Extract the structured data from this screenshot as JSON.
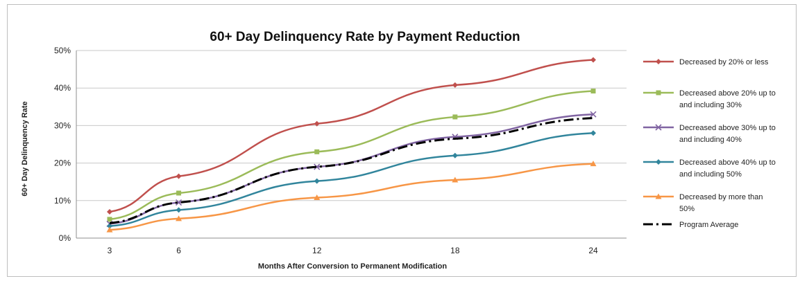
{
  "chart_data": {
    "type": "line",
    "title": "60+ Day Delinquency Rate by Payment Reduction",
    "xlabel": "Months After Conversion to Permanent Modification",
    "ylabel": "60+ Day Delinquency Rate",
    "x": [
      3,
      6,
      12,
      18,
      24
    ],
    "xlim": [
      3,
      24
    ],
    "ylim": [
      0,
      50
    ],
    "y_ticks": [
      "0%",
      "10%",
      "20%",
      "30%",
      "40%",
      "50%"
    ],
    "y_tick_values": [
      0,
      10,
      20,
      30,
      40,
      50
    ],
    "x_ticks": [
      "3",
      "6",
      "12",
      "18",
      "24"
    ],
    "grid": "horizontal",
    "legend_position": "right",
    "series": [
      {
        "name": "Decreased by 20% or less",
        "label_lines": [
          "Decreased by 20% or less"
        ],
        "color": "#c0504d",
        "marker": "diamond",
        "values": [
          7,
          16.5,
          30.5,
          40.8,
          47.5
        ]
      },
      {
        "name": "Decreased above 20% up to and including 30%",
        "label_lines": [
          "Decreased above 20% up to",
          "and including 30%"
        ],
        "color": "#9bbb59",
        "marker": "square",
        "values": [
          5,
          12,
          23,
          32.3,
          39.2
        ]
      },
      {
        "name": "Decreased above 30% up to and including 40%",
        "label_lines": [
          "Decreased above 30% up to",
          "and including 40%"
        ],
        "color": "#8064a2",
        "marker": "x",
        "values": [
          3.8,
          9.5,
          19,
          27,
          33
        ]
      },
      {
        "name": "Decreased above 40% up to and including 50%",
        "label_lines": [
          "Decreased above 40% up to",
          "and including 50%"
        ],
        "color": "#31859c",
        "marker": "diamond",
        "values": [
          3.2,
          7.5,
          15.2,
          22,
          28
        ]
      },
      {
        "name": "Decreased by more than 50%",
        "label_lines": [
          "Decreased by more than",
          "50%"
        ],
        "color": "#f79646",
        "marker": "triangle",
        "values": [
          2.2,
          5.2,
          10.8,
          15.5,
          19.8
        ]
      },
      {
        "name": "Program Average",
        "label_lines": [
          "Program Average"
        ],
        "color": "#000000",
        "marker": "none",
        "dashed": true,
        "values": [
          4,
          9.5,
          19,
          26.5,
          32
        ]
      }
    ]
  }
}
